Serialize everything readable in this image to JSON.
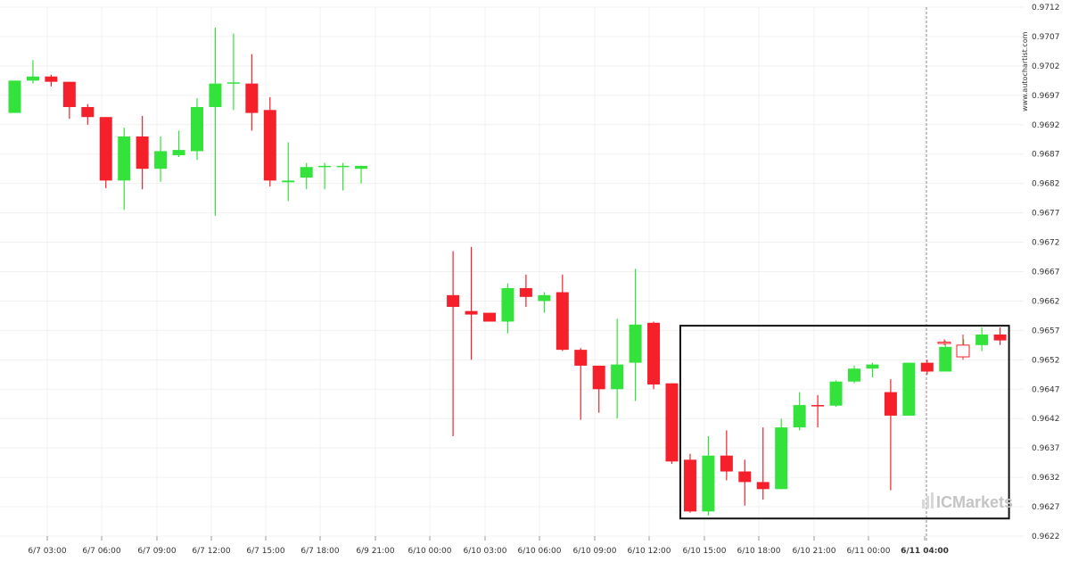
{
  "chart_data": {
    "type": "candlestick",
    "title": "",
    "xlabel": "",
    "ylabel": "",
    "grid": true,
    "ylim": [
      0.962,
      0.9712
    ],
    "y_ticks": [
      "0.9712",
      "0.9707",
      "0.9702",
      "0.9697",
      "0.9692",
      "0.9687",
      "0.9682",
      "0.9677",
      "0.9672",
      "0.9667",
      "0.9662",
      "0.9657",
      "0.9652",
      "0.9647",
      "0.9642",
      "0.9637",
      "0.9632",
      "0.9627",
      "0.9622"
    ],
    "x_ticks": [
      "6/7 03:00",
      "6/7 06:00",
      "6/7 09:00",
      "6/7 12:00",
      "6/7 15:00",
      "6/7 18:00",
      "6/9 21:00",
      "6/10 00:00",
      "6/10 03:00",
      "6/10 06:00",
      "6/10 09:00",
      "6/10 12:00",
      "6/10 15:00",
      "6/10 18:00",
      "6/10 21:00",
      "6/11 00:00",
      "6/11 04:00"
    ],
    "highlighted_tick": "6/11 04:00",
    "watermark": "www.autochartist.com",
    "brand": "ICMarkets",
    "colors": {
      "up": "#33e33c",
      "down": "#f5202a",
      "box": "#111111",
      "forecast": "#f5202a"
    },
    "candles": [
      {
        "o": 0.9694,
        "h": 0.96995,
        "l": 0.9694,
        "c": 0.96995
      },
      {
        "o": 0.96995,
        "h": 0.9703,
        "l": 0.9699,
        "c": 0.97002
      },
      {
        "o": 0.97002,
        "h": 0.97005,
        "l": 0.96985,
        "c": 0.96993
      },
      {
        "o": 0.96993,
        "h": 0.96993,
        "l": 0.9693,
        "c": 0.9695
      },
      {
        "o": 0.9695,
        "h": 0.96955,
        "l": 0.9692,
        "c": 0.96933
      },
      {
        "o": 0.96933,
        "h": 0.96933,
        "l": 0.96812,
        "c": 0.96825
      },
      {
        "o": 0.96825,
        "h": 0.96915,
        "l": 0.96775,
        "c": 0.969
      },
      {
        "o": 0.969,
        "h": 0.96935,
        "l": 0.9681,
        "c": 0.96845
      },
      {
        "o": 0.96845,
        "h": 0.969,
        "l": 0.96823,
        "c": 0.96875
      },
      {
        "o": 0.96868,
        "h": 0.9691,
        "l": 0.96865,
        "c": 0.96877
      },
      {
        "o": 0.96875,
        "h": 0.96965,
        "l": 0.9686,
        "c": 0.9695
      },
      {
        "o": 0.9695,
        "h": 0.97085,
        "l": 0.96765,
        "c": 0.9699
      },
      {
        "o": 0.9699,
        "h": 0.97075,
        "l": 0.96945,
        "c": 0.96992
      },
      {
        "o": 0.9699,
        "h": 0.9704,
        "l": 0.9691,
        "c": 0.9694
      },
      {
        "o": 0.96945,
        "h": 0.96967,
        "l": 0.96815,
        "c": 0.96825
      },
      {
        "o": 0.96822,
        "h": 0.9689,
        "l": 0.9679,
        "c": 0.96825
      },
      {
        "o": 0.9683,
        "h": 0.96855,
        "l": 0.9681,
        "c": 0.96848
      },
      {
        "o": 0.9685,
        "h": 0.96855,
        "l": 0.9681,
        "c": 0.9685
      },
      {
        "o": 0.9685,
        "h": 0.96855,
        "l": 0.96808,
        "c": 0.9685
      },
      {
        "o": 0.96845,
        "h": 0.9685,
        "l": 0.9682,
        "c": 0.9685
      },
      {
        "o": 0.9663,
        "h": 0.96705,
        "l": 0.9639,
        "c": 0.9661
      },
      {
        "o": 0.96603,
        "h": 0.96712,
        "l": 0.9652,
        "c": 0.96597
      },
      {
        "o": 0.966,
        "h": 0.966,
        "l": 0.96585,
        "c": 0.96585
      },
      {
        "o": 0.96585,
        "h": 0.9665,
        "l": 0.96565,
        "c": 0.96642
      },
      {
        "o": 0.96642,
        "h": 0.96665,
        "l": 0.9661,
        "c": 0.96627
      },
      {
        "o": 0.9662,
        "h": 0.96635,
        "l": 0.966,
        "c": 0.9663
      },
      {
        "o": 0.96635,
        "h": 0.96665,
        "l": 0.96535,
        "c": 0.96537
      },
      {
        "o": 0.96537,
        "h": 0.9654,
        "l": 0.96418,
        "c": 0.9651
      },
      {
        "o": 0.9651,
        "h": 0.9651,
        "l": 0.9643,
        "c": 0.9647
      },
      {
        "o": 0.9647,
        "h": 0.9659,
        "l": 0.9642,
        "c": 0.96512
      },
      {
        "o": 0.96515,
        "h": 0.96675,
        "l": 0.9645,
        "c": 0.9658
      },
      {
        "o": 0.96583,
        "h": 0.96585,
        "l": 0.9647,
        "c": 0.96478
      },
      {
        "o": 0.9648,
        "h": 0.9648,
        "l": 0.96343,
        "c": 0.96347
      },
      {
        "o": 0.9635,
        "h": 0.9636,
        "l": 0.9626,
        "c": 0.96262
      },
      {
        "o": 0.96262,
        "h": 0.9639,
        "l": 0.96255,
        "c": 0.96357
      },
      {
        "o": 0.96357,
        "h": 0.964,
        "l": 0.96315,
        "c": 0.9633
      },
      {
        "o": 0.9633,
        "h": 0.9635,
        "l": 0.96272,
        "c": 0.96312
      },
      {
        "o": 0.96312,
        "h": 0.96405,
        "l": 0.96282,
        "c": 0.963
      },
      {
        "o": 0.963,
        "h": 0.9642,
        "l": 0.963,
        "c": 0.96405
      },
      {
        "o": 0.96405,
        "h": 0.96465,
        "l": 0.964,
        "c": 0.96443
      },
      {
        "o": 0.96443,
        "h": 0.9646,
        "l": 0.96405,
        "c": 0.96442
      },
      {
        "o": 0.96442,
        "h": 0.96485,
        "l": 0.9644,
        "c": 0.96483
      },
      {
        "o": 0.96483,
        "h": 0.9651,
        "l": 0.9648,
        "c": 0.96505
      },
      {
        "o": 0.96505,
        "h": 0.96515,
        "l": 0.9649,
        "c": 0.96512
      },
      {
        "o": 0.96465,
        "h": 0.96487,
        "l": 0.96298,
        "c": 0.96425
      },
      {
        "o": 0.96425,
        "h": 0.96515,
        "l": 0.96425,
        "c": 0.96515
      },
      {
        "o": 0.96515,
        "h": 0.9652,
        "l": 0.96495,
        "c": 0.965
      },
      {
        "o": 0.965,
        "h": 0.96553,
        "l": 0.965,
        "c": 0.96542
      },
      {
        "o": 0.96542,
        "h": 0.96555,
        "l": 0.96528,
        "c": 0.96542
      },
      {
        "o": 0.96545,
        "h": 0.96575,
        "l": 0.96535,
        "c": 0.96563
      },
      {
        "o": 0.96563,
        "h": 0.96575,
        "l": 0.96545,
        "c": 0.96553
      }
    ],
    "candle_x_minutes_note": "",
    "pattern_box": {
      "start_index": 33,
      "end_index": 50,
      "low": 0.9625,
      "high": 0.96578
    },
    "forecast_candles": [
      {
        "o": 0.9655,
        "h": 0.96555,
        "l": 0.96545,
        "c": 0.9655
      },
      {
        "o": 0.96545,
        "h": 0.96563,
        "l": 0.9652,
        "c": 0.96525
      }
    ]
  }
}
